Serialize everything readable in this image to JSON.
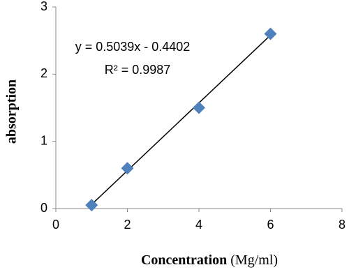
{
  "chart_data": {
    "type": "scatter",
    "x": [
      1,
      2,
      4,
      6
    ],
    "values": [
      0.05,
      0.6,
      1.5,
      2.6
    ],
    "color": "#4f81bd",
    "xlim": [
      0,
      8
    ],
    "xticks": [
      0,
      2,
      4,
      6,
      8
    ],
    "ylim": [
      0,
      3
    ],
    "yticks": [
      0,
      1,
      2,
      3
    ],
    "xlabel": "Concentration",
    "xlabel_unit": "(Mg/ml)",
    "ylabel": "absorption",
    "trendline": {
      "x": [
        1,
        6
      ],
      "y": [
        0.06,
        2.58
      ]
    },
    "annotations": [
      "y = 0.5039x - 0.4402",
      "R² = 0.9987"
    ]
  }
}
